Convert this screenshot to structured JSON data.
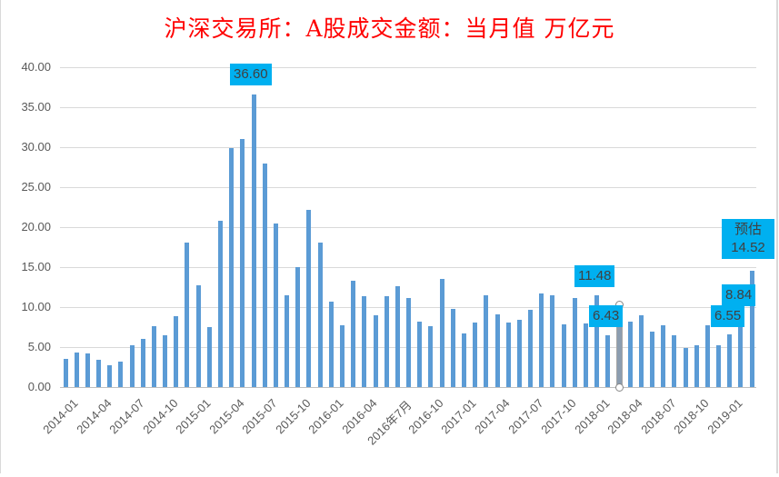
{
  "chart_data": {
    "type": "bar",
    "title": "沪深交易所：A股成交金额：当月值 万亿元",
    "xlabel": "",
    "ylabel": "",
    "ylim": [
      0,
      40
    ],
    "yticks": [
      "0.00",
      "5.00",
      "10.00",
      "15.00",
      "20.00",
      "25.00",
      "30.00",
      "35.00",
      "40.00"
    ],
    "grid": true,
    "legend": "none",
    "bar_color": "#5b9bd5",
    "label_box_color": "#00b0f0",
    "title_color": "#ff0000",
    "categories": [
      "2014-01",
      "2014-02",
      "2014-03",
      "2014-04",
      "2014-05",
      "2014-06",
      "2014-07",
      "2014-08",
      "2014-09",
      "2014-10",
      "2014-11",
      "2014-12",
      "2015-01",
      "2015-02",
      "2015-03",
      "2015-04",
      "2015-05",
      "2015-06",
      "2015-07",
      "2015-08",
      "2015-09",
      "2015-10",
      "2015-11",
      "2015-12",
      "2016-01",
      "2016-02",
      "2016-03",
      "2016-04",
      "2016-05",
      "2016-06",
      "2016年7月",
      "2016-08",
      "2016-09",
      "2016-10",
      "2016-11",
      "2016-12",
      "2017-01",
      "2017-02",
      "2017-03",
      "2017-04",
      "2017-05",
      "2017-06",
      "2017-07",
      "2017-08",
      "2017-09",
      "2017-10",
      "2017-11",
      "2017-12",
      "2018-01",
      "2018-02",
      "2018-03",
      "2018-04",
      "2018-05",
      "2018-06",
      "2018-07",
      "2018-08",
      "2018-09",
      "2018-10",
      "2018-11",
      "2018-12",
      "2019-01",
      "2019-02",
      "2019-03"
    ],
    "values": [
      3.5,
      4.3,
      4.2,
      3.4,
      2.7,
      3.2,
      5.2,
      6.0,
      7.6,
      6.5,
      8.9,
      18.1,
      12.7,
      7.5,
      20.8,
      29.9,
      31.0,
      36.6,
      28.0,
      20.5,
      11.5,
      15.0,
      22.2,
      18.1,
      10.7,
      7.7,
      13.3,
      11.4,
      9.0,
      11.4,
      12.6,
      11.1,
      8.2,
      7.6,
      13.5,
      9.8,
      6.7,
      8.1,
      11.5,
      9.1,
      8.1,
      8.4,
      9.7,
      11.7,
      11.5,
      7.8,
      11.1,
      8.0,
      11.48,
      6.43,
      10.3,
      8.2,
      9.0,
      6.9,
      7.7,
      6.5,
      4.9,
      5.2,
      7.7,
      5.2,
      6.55,
      8.84,
      14.52
    ],
    "visible_xtick_labels": [
      "2014-01",
      "2014-04",
      "2014-07",
      "2014-10",
      "2015-01",
      "2015-04",
      "2015-07",
      "2015-10",
      "2016-01",
      "2016-04",
      "2016年7月",
      "2016-10",
      "2017-01",
      "2017-04",
      "2017-07",
      "2017-10",
      "2018-01",
      "2018-04",
      "2018-07",
      "2018-10",
      "2019-01"
    ],
    "annotations": [
      {
        "index": 17,
        "text": "36.60"
      },
      {
        "index": 48,
        "text": "11.48"
      },
      {
        "index": 49,
        "text": "6.43"
      },
      {
        "index": 60,
        "text": "6.55"
      },
      {
        "index": 61,
        "text": "8.84"
      },
      {
        "index": 62,
        "text": "预估\n14.52",
        "line1": "预估",
        "line2": "14.52"
      }
    ],
    "selected_index": 50
  }
}
